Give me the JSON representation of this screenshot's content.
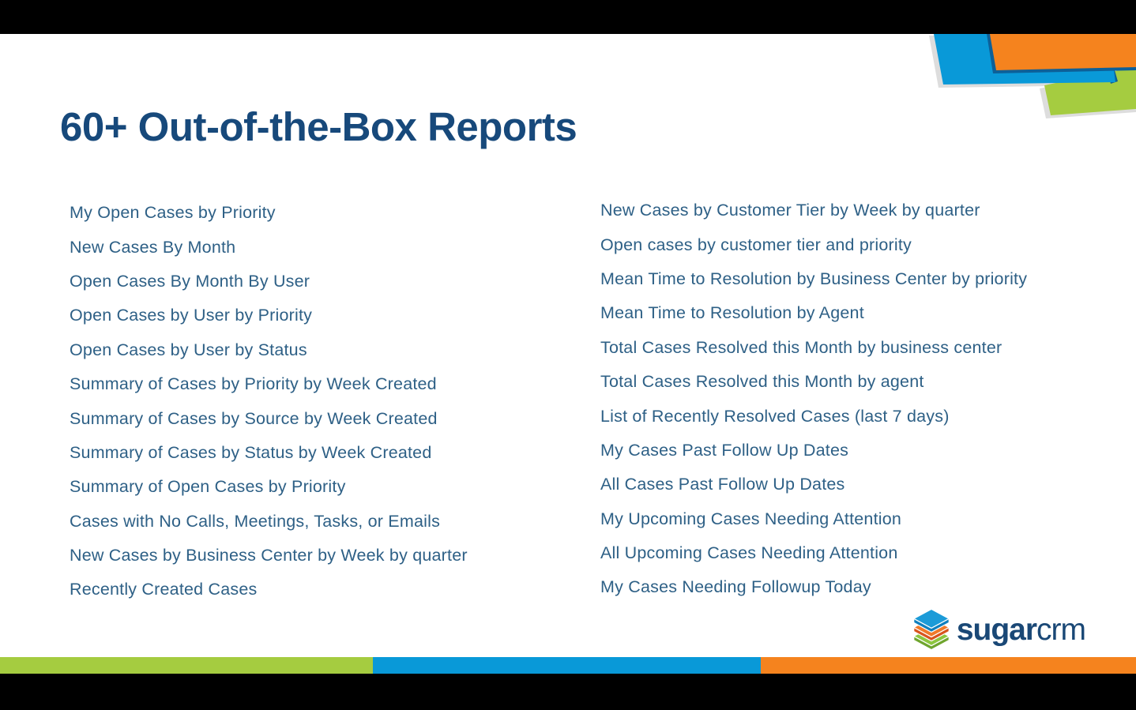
{
  "slide": {
    "title": "60+ Out-of-the-Box Reports",
    "left_reports": [
      "My Open Cases by Priority",
      "New Cases By Month",
      "Open Cases By Month By User",
      "Open Cases by User by Priority",
      "Open Cases by User by Status",
      "Summary of Cases by Priority by Week Created",
      "Summary of Cases by Source by Week Created",
      "Summary of Cases by Status by Week Created",
      "Summary of Open Cases by Priority",
      "Cases with No Calls, Meetings, Tasks, or Emails",
      "New Cases by Business Center by Week by quarter",
      "Recently Created Cases"
    ],
    "right_reports": [
      "New Cases by Customer Tier by Week by quarter",
      "Open cases by customer tier and priority",
      "Mean Time to Resolution by Business Center by priority",
      "Mean Time to Resolution by Agent",
      "Total Cases Resolved this Month by business center",
      "Total Cases Resolved this Month by agent",
      "List of Recently Resolved Cases (last 7 days)",
      "My Cases Past Follow Up Dates",
      "All Cases Past Follow Up Dates",
      "My Upcoming Cases Needing Attention",
      "All Upcoming Cases Needing Attention",
      "My Cases Needing Followup Today"
    ]
  },
  "logo": {
    "icon": "layered-stack-icon",
    "text_bold": "sugar",
    "text_light": "crm"
  },
  "colors": {
    "title_navy": "#17497B",
    "list_text": "#2E6086",
    "brand_blue": "#0999D8",
    "brand_orange": "#F5831E",
    "brand_green": "#A5CC40",
    "navy_edge": "#0D6098",
    "shadow_gray": "#DDDDDD",
    "letterbox_black": "#000000"
  }
}
